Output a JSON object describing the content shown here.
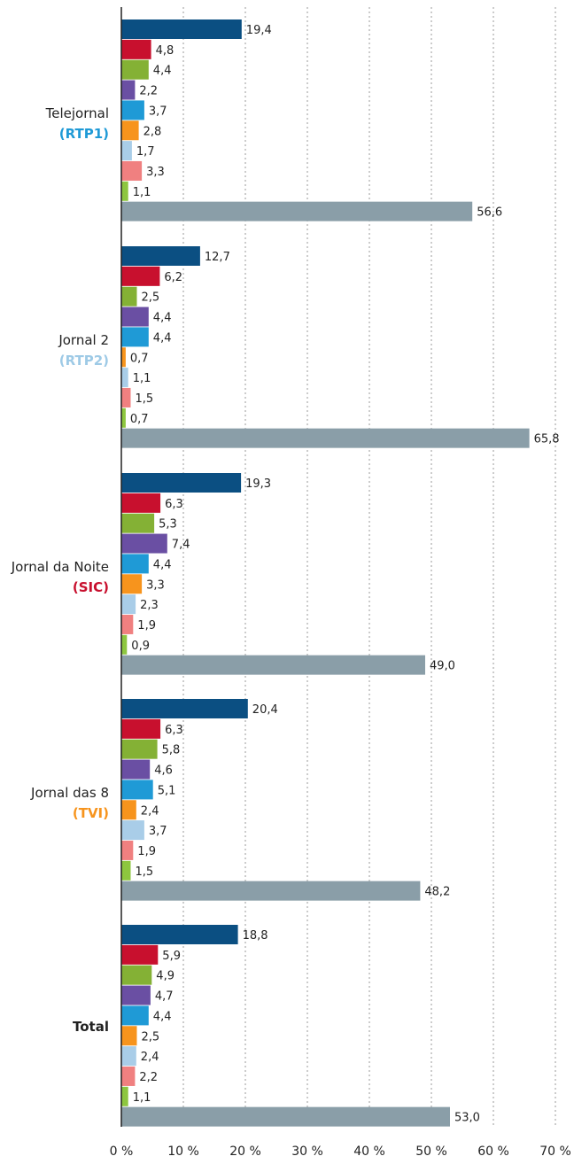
{
  "chart_data": {
    "type": "bar",
    "orientation": "horizontal",
    "xlim": [
      0,
      70
    ],
    "x_ticks": [
      "0 %",
      "10 %",
      "20 %",
      "30 %",
      "40 %",
      "50 %",
      "60 %",
      "70 %"
    ],
    "grid": "vertical dashed",
    "categories": [
      {
        "name": "Telejornal",
        "channel": "(RTP1)",
        "channel_color": "#1f9ad6",
        "values": [
          19.4,
          4.8,
          4.4,
          2.2,
          3.7,
          2.8,
          1.7,
          3.3,
          1.1,
          56.6
        ],
        "labels": [
          "19,4",
          "4,8",
          "4,4",
          "2,2",
          "3,7",
          "2,8",
          "1,7",
          "3,3",
          "1,1",
          "56,6"
        ]
      },
      {
        "name": "Jornal 2",
        "channel": "(RTP2)",
        "channel_color": "#9ecae6",
        "values": [
          12.7,
          6.2,
          2.5,
          4.4,
          4.4,
          0.7,
          1.1,
          1.5,
          0.7,
          65.8
        ],
        "labels": [
          "12,7",
          "6,2",
          "2,5",
          "4,4",
          "4,4",
          "0,7",
          "1,1",
          "1,5",
          "0,7",
          "65,8"
        ]
      },
      {
        "name": "Jornal da Noite",
        "channel": "(SIC)",
        "channel_color": "#c8102e",
        "values": [
          19.3,
          6.3,
          5.3,
          7.4,
          4.4,
          3.3,
          2.3,
          1.9,
          0.9,
          49.0
        ],
        "labels": [
          "19,3",
          "6,3",
          "5,3",
          "7,4",
          "4,4",
          "3,3",
          "2,3",
          "1,9",
          "0,9",
          "49,0"
        ]
      },
      {
        "name": "Jornal das 8",
        "channel": "(TVI)",
        "channel_color": "#f7941d",
        "values": [
          20.4,
          6.3,
          5.8,
          4.6,
          5.1,
          2.4,
          3.7,
          1.9,
          1.5,
          48.2
        ],
        "labels": [
          "20,4",
          "6,3",
          "5,8",
          "4,6",
          "5,1",
          "2,4",
          "3,7",
          "1,9",
          "1,5",
          "48,2"
        ]
      },
      {
        "name": "Total",
        "channel": "",
        "channel_color": "#222222",
        "bold": true,
        "values": [
          18.8,
          5.9,
          4.9,
          4.7,
          4.4,
          2.5,
          2.4,
          2.2,
          1.1,
          53.0
        ],
        "labels": [
          "18,8",
          "5,9",
          "4,9",
          "4,7",
          "4,4",
          "2,5",
          "2,4",
          "2,2",
          "1,1",
          "53,0"
        ]
      }
    ],
    "series_colors": [
      "#0b4f82",
      "#c8102e",
      "#84b135",
      "#6a4fa3",
      "#1f9ad6",
      "#f7941d",
      "#a9cde8",
      "#f08080",
      "#8dc63f",
      "#8a9ea8"
    ]
  }
}
